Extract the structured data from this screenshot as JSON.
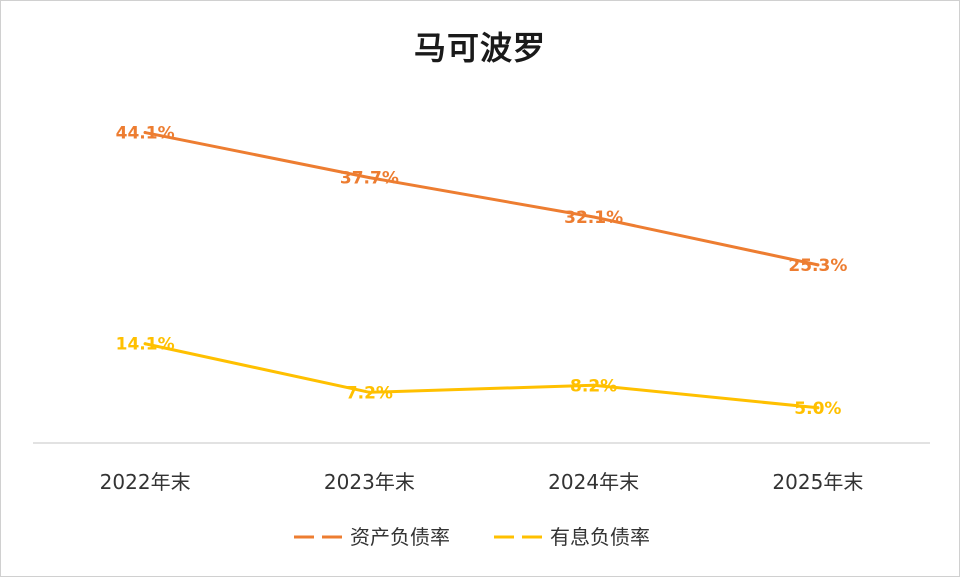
{
  "chart_data": {
    "type": "line",
    "title": "马可波罗",
    "categories": [
      "2022年末",
      "2023年末",
      "2024年末",
      "2025年末"
    ],
    "series": [
      {
        "name": "资产负债率",
        "values": [
          44.1,
          37.7,
          32.1,
          25.3
        ],
        "labels": [
          "44.1%",
          "37.7%",
          "32.1%",
          "25.3%"
        ],
        "color": "#ED7D31"
      },
      {
        "name": "有息负债率",
        "values": [
          14.1,
          7.2,
          8.2,
          5.0
        ],
        "labels": [
          "14.1%",
          "7.2%",
          "8.2%",
          "5.0%"
        ],
        "color": "#FFC000"
      }
    ],
    "xlabel": "",
    "ylabel": "",
    "ylim": [
      0,
      50
    ],
    "grid": false,
    "legend": "bottom"
  }
}
